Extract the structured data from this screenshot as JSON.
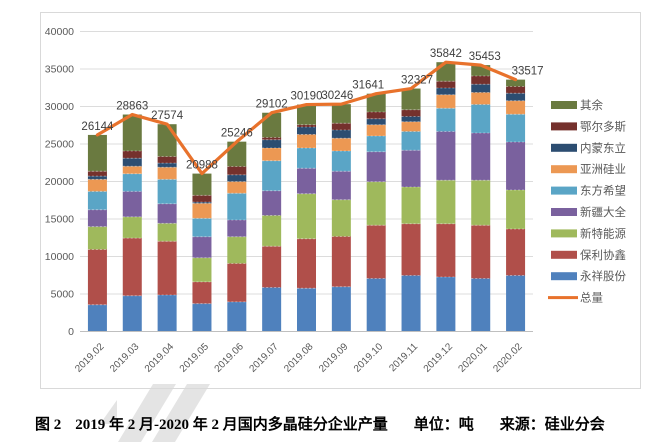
{
  "figure": {
    "caption": {
      "label": "图 2",
      "title": "2019 年 2 月-2020 年 2 月国内多晶硅分企业产量",
      "unit": "单位：吨",
      "source": "来源：硅业分会"
    }
  },
  "chart_data": {
    "type": "bar",
    "subtype": "stacked-column-with-total-line",
    "title": "",
    "xlabel": "",
    "ylabel": "",
    "ylim": [
      0,
      40000
    ],
    "ytick_step": 5000,
    "y_ticks": [
      0,
      5000,
      10000,
      15000,
      20000,
      25000,
      30000,
      35000,
      40000
    ],
    "grid": true,
    "legend_position": "right",
    "categories": [
      "2019.02",
      "2019.03",
      "2019.04",
      "2019.05",
      "2019.06",
      "2019.07",
      "2019.08",
      "2019.09",
      "2019.10",
      "2019.11",
      "2019.12",
      "2020.01",
      "2020.02"
    ],
    "series": [
      {
        "name": "永祥股份",
        "slug": "yongxiang-gufen",
        "color": "#4F81BD",
        "values": [
          3500,
          4700,
          4800,
          3650,
          3880,
          5800,
          5700,
          5900,
          7000,
          7400,
          7200,
          7000,
          7400
        ]
      },
      {
        "name": "保利协鑫",
        "slug": "baoli-xiexin",
        "color": "#B04F4A",
        "values": [
          7370,
          7690,
          7160,
          2900,
          5120,
          5500,
          6600,
          6700,
          7100,
          6900,
          7100,
          7100,
          6200
        ]
      },
      {
        "name": "新特能源",
        "slug": "xinte-nengyuan",
        "color": "#9FB95C",
        "values": [
          3040,
          2830,
          2390,
          3210,
          3570,
          4100,
          6000,
          4900,
          5800,
          4900,
          5800,
          6000,
          5200
        ]
      },
      {
        "name": "新疆大全",
        "slug": "xinjiang-daquan",
        "color": "#7A619E",
        "values": [
          2260,
          3390,
          2610,
          2810,
          2230,
          3300,
          3400,
          3800,
          4000,
          4900,
          6500,
          6300,
          6400
        ]
      },
      {
        "name": "东方希望",
        "slug": "dongfang-xiwang",
        "color": "#5AA5C6",
        "values": [
          2440,
          2350,
          3260,
          2450,
          3560,
          4000,
          2700,
          2700,
          2100,
          2500,
          3100,
          3800,
          3700
        ]
      },
      {
        "name": "亚洲硅业",
        "slug": "yazhou-guiye",
        "color": "#EC9853",
        "values": [
          1610,
          1000,
          1610,
          2000,
          1560,
          1700,
          1800,
          1700,
          1500,
          1300,
          1800,
          1600,
          1800
        ]
      },
      {
        "name": "内蒙东立",
        "slug": "neimeng-dongli",
        "color": "#2C4D71",
        "values": [
          430,
          1080,
          560,
          170,
          900,
          1100,
          1000,
          1100,
          800,
          700,
          900,
          1100,
          1000
        ]
      },
      {
        "name": "鄂尔多斯",
        "slug": "eerduosi",
        "color": "#75312D",
        "values": [
          650,
          960,
          870,
          900,
          1110,
          300,
          300,
          900,
          900,
          900,
          900,
          1100,
          900
        ]
      },
      {
        "name": "其余",
        "slug": "qiyu",
        "color": "#6A7A40",
        "values": [
          4844,
          4863,
          4314,
          2898,
          3316,
          3302,
          2690,
          2546,
          2441,
          2827,
          2542,
          1453,
          917
        ]
      }
    ],
    "line_series": {
      "name": "总量",
      "slug": "zongliang-total",
      "color": "#E8722C",
      "values": [
        26144,
        28863,
        27574,
        20988,
        25246,
        29102,
        30190,
        30246,
        31641,
        32327,
        35842,
        35453,
        33517
      ]
    },
    "data_labels": [
      "26144",
      "28863",
      "27574",
      "20988",
      "25246",
      "29102",
      "30190",
      "30246",
      "31641",
      "32327",
      "35842",
      "35453",
      "33517"
    ],
    "label_dx": [
      0,
      0,
      0,
      0,
      0,
      0,
      0,
      -4,
      -8,
      6,
      0,
      4,
      12
    ],
    "colors": {
      "gridline": "#DCDCDC",
      "axis_line": "#BFBFBF",
      "chart_border": "#D9D9D9",
      "tick_text": "#595959",
      "data_label_text": "#404040",
      "watermark": "#CFCFCF"
    }
  }
}
